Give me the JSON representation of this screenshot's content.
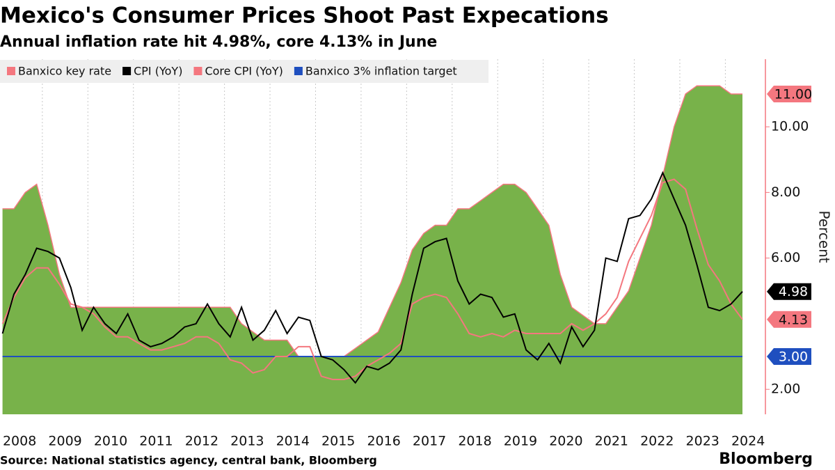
{
  "chart_data": {
    "type": "line",
    "title": "Mexico's Consumer Prices Shoot Past Expecations",
    "subtitle": "Annual inflation rate hit 4.98%, core 4.13% in June",
    "y_axis_label": "Percent",
    "source": "Source: National statistics agency, central bank, Bloomberg",
    "brand": "Bloomberg",
    "x": [
      2008.125,
      2008.375,
      2008.625,
      2008.875,
      2009.125,
      2009.375,
      2009.625,
      2009.875,
      2010.125,
      2010.375,
      2010.625,
      2010.875,
      2011.125,
      2011.375,
      2011.625,
      2011.875,
      2012.125,
      2012.375,
      2012.625,
      2012.875,
      2013.125,
      2013.375,
      2013.625,
      2013.875,
      2014.125,
      2014.375,
      2014.625,
      2014.875,
      2015.125,
      2015.375,
      2015.625,
      2015.875,
      2016.125,
      2016.375,
      2016.625,
      2016.875,
      2017.125,
      2017.375,
      2017.625,
      2017.875,
      2018.125,
      2018.375,
      2018.625,
      2018.875,
      2019.125,
      2019.375,
      2019.625,
      2019.875,
      2020.125,
      2020.375,
      2020.625,
      2020.875,
      2021.125,
      2021.375,
      2021.625,
      2021.875,
      2022.125,
      2022.375,
      2022.625,
      2022.875,
      2023.125,
      2023.375,
      2023.625,
      2023.875,
      2024.125,
      2024.375
    ],
    "xlim": [
      2008.07,
      2024.88
    ],
    "xticks": [
      2008,
      2009,
      2010,
      2011,
      2012,
      2013,
      2014,
      2015,
      2016,
      2017,
      2018,
      2019,
      2020,
      2021,
      2022,
      2023,
      2024
    ],
    "ylim": [
      1.24,
      12.06
    ],
    "yticks": [
      {
        "value": 2,
        "label": "2.00"
      },
      {
        "value": 6,
        "label": "6.00"
      },
      {
        "value": 8,
        "label": "8.00"
      },
      {
        "value": 10,
        "label": "10.00"
      }
    ],
    "grid": true,
    "series": [
      {
        "name": "Banxico key rate",
        "color": "#f4777f",
        "fill": "#78b24a",
        "values": [
          7.5,
          7.5,
          8.0,
          8.25,
          7.0,
          5.5,
          4.5,
          4.5,
          4.5,
          4.5,
          4.5,
          4.5,
          4.5,
          4.5,
          4.5,
          4.5,
          4.5,
          4.5,
          4.5,
          4.5,
          4.5,
          4.0,
          3.75,
          3.5,
          3.5,
          3.5,
          3.0,
          3.0,
          3.0,
          3.0,
          3.0,
          3.25,
          3.5,
          3.75,
          4.5,
          5.25,
          6.25,
          6.75,
          7.0,
          7.0,
          7.5,
          7.5,
          7.75,
          8.0,
          8.25,
          8.25,
          8.0,
          7.5,
          7.0,
          5.5,
          4.5,
          4.25,
          4.0,
          4.0,
          4.5,
          5.0,
          6.0,
          7.0,
          8.5,
          10.0,
          11.0,
          11.25,
          11.25,
          11.25,
          11.0,
          11.0
        ],
        "value_labels": [
          null,
          null,
          null,
          null,
          null,
          null,
          null,
          null,
          null,
          null,
          null,
          null,
          null,
          null,
          null,
          null,
          null,
          null,
          null,
          null,
          null,
          null,
          null,
          null,
          null,
          null,
          null,
          null,
          null,
          null,
          null,
          null,
          null,
          null,
          null,
          null,
          null,
          null,
          null,
          null,
          null,
          null,
          null,
          null,
          null,
          null,
          null,
          null,
          null,
          null,
          null,
          null,
          null,
          null,
          null,
          null,
          null,
          null,
          null,
          null,
          null,
          null,
          null,
          null,
          null,
          "11.00"
        ]
      },
      {
        "name": "CPI (YoY)",
        "color": "#000000",
        "values": [
          3.7,
          4.9,
          5.5,
          6.3,
          6.2,
          6.0,
          5.1,
          3.8,
          4.5,
          4.0,
          3.7,
          4.3,
          3.5,
          3.3,
          3.4,
          3.6,
          3.9,
          4.0,
          4.6,
          4.0,
          3.6,
          4.5,
          3.5,
          3.8,
          4.4,
          3.7,
          4.2,
          4.1,
          3.0,
          2.9,
          2.6,
          2.2,
          2.7,
          2.6,
          2.8,
          3.2,
          4.9,
          6.3,
          6.5,
          6.6,
          5.3,
          4.6,
          4.9,
          4.8,
          4.2,
          4.3,
          3.2,
          2.9,
          3.4,
          2.8,
          3.9,
          3.3,
          3.8,
          6.0,
          5.9,
          7.2,
          7.3,
          7.8,
          8.6,
          7.8,
          7.0,
          5.8,
          4.5,
          4.4,
          4.6,
          4.98
        ],
        "value_labels": [
          null,
          null,
          null,
          null,
          null,
          null,
          null,
          null,
          null,
          null,
          null,
          null,
          null,
          null,
          null,
          null,
          null,
          null,
          null,
          null,
          null,
          null,
          null,
          null,
          null,
          null,
          null,
          null,
          null,
          null,
          null,
          null,
          null,
          null,
          null,
          null,
          null,
          null,
          null,
          null,
          null,
          null,
          null,
          null,
          null,
          null,
          null,
          null,
          null,
          null,
          null,
          null,
          null,
          null,
          null,
          null,
          null,
          null,
          null,
          null,
          null,
          null,
          null,
          null,
          null,
          "4.98"
        ]
      },
      {
        "name": "Core CPI (YoY)",
        "color": "#f4777f",
        "values": [
          4.0,
          4.8,
          5.4,
          5.7,
          5.7,
          5.2,
          4.6,
          4.5,
          4.3,
          3.9,
          3.6,
          3.6,
          3.4,
          3.2,
          3.2,
          3.3,
          3.4,
          3.6,
          3.6,
          3.4,
          2.9,
          2.8,
          2.5,
          2.6,
          3.0,
          3.0,
          3.3,
          3.3,
          2.4,
          2.3,
          2.3,
          2.4,
          2.7,
          2.9,
          3.1,
          3.4,
          4.6,
          4.8,
          4.9,
          4.8,
          4.3,
          3.7,
          3.6,
          3.7,
          3.6,
          3.8,
          3.7,
          3.7,
          3.7,
          3.7,
          4.0,
          3.8,
          4.0,
          4.3,
          4.8,
          5.9,
          6.6,
          7.3,
          8.3,
          8.4,
          8.1,
          6.9,
          5.8,
          5.3,
          4.6,
          4.13
        ],
        "value_labels": [
          null,
          null,
          null,
          null,
          null,
          null,
          null,
          null,
          null,
          null,
          null,
          null,
          null,
          null,
          null,
          null,
          null,
          null,
          null,
          null,
          null,
          null,
          null,
          null,
          null,
          null,
          null,
          null,
          null,
          null,
          null,
          null,
          null,
          null,
          null,
          null,
          null,
          null,
          null,
          null,
          null,
          null,
          null,
          null,
          null,
          null,
          null,
          null,
          null,
          null,
          null,
          null,
          null,
          null,
          null,
          null,
          null,
          null,
          null,
          null,
          null,
          null,
          null,
          null,
          null,
          "4.13"
        ]
      },
      {
        "name": "Banxico 3% inflation target",
        "color": "#1f4fbf",
        "values": [
          3,
          3,
          3,
          3,
          3,
          3,
          3,
          3,
          3,
          3,
          3,
          3,
          3,
          3,
          3,
          3,
          3,
          3,
          3,
          3,
          3,
          3,
          3,
          3,
          3,
          3,
          3,
          3,
          3,
          3,
          3,
          3,
          3,
          3,
          3,
          3,
          3,
          3,
          3,
          3,
          3,
          3,
          3,
          3,
          3,
          3,
          3,
          3,
          3,
          3,
          3,
          3,
          3,
          3,
          3,
          3,
          3,
          3,
          3,
          3,
          3,
          3,
          3,
          3,
          3,
          3
        ],
        "value_labels": [
          null,
          null,
          null,
          null,
          null,
          null,
          null,
          null,
          null,
          null,
          null,
          null,
          null,
          null,
          null,
          null,
          null,
          null,
          null,
          null,
          null,
          null,
          null,
          null,
          null,
          null,
          null,
          null,
          null,
          null,
          null,
          null,
          null,
          null,
          null,
          null,
          null,
          null,
          null,
          null,
          null,
          null,
          null,
          null,
          null,
          null,
          null,
          null,
          null,
          null,
          null,
          null,
          null,
          null,
          null,
          null,
          null,
          null,
          null,
          null,
          null,
          null,
          null,
          null,
          null,
          "3.00"
        ]
      }
    ]
  }
}
